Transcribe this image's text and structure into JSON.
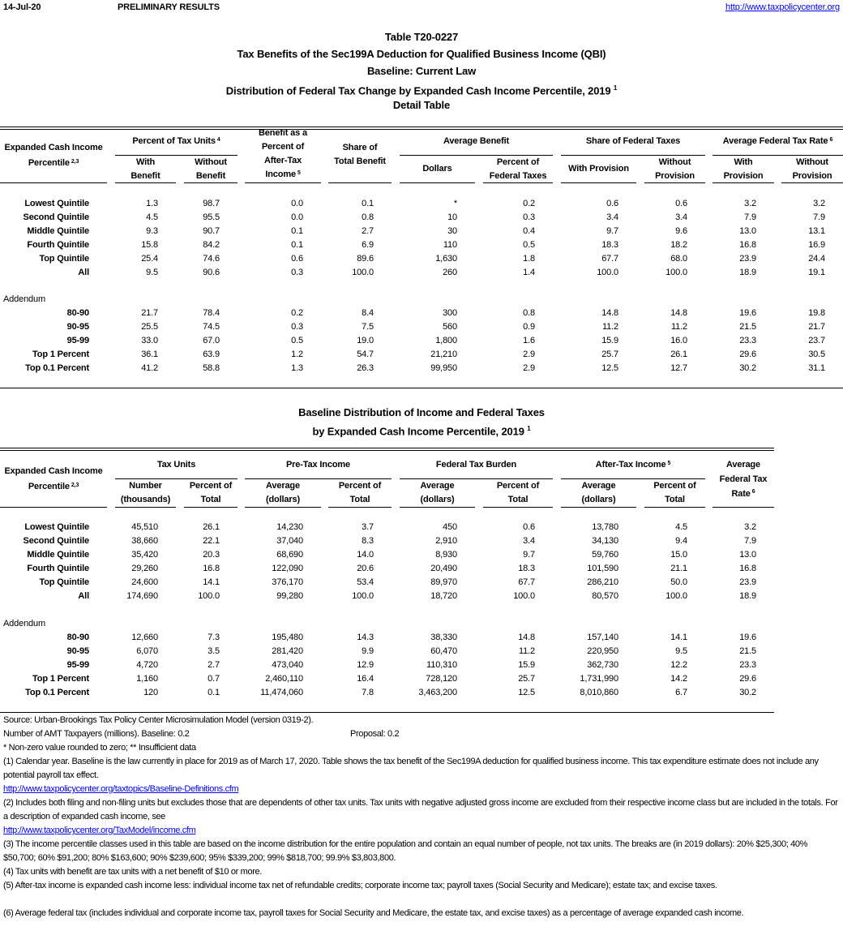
{
  "header": {
    "date": "14-Jul-20",
    "status": "PRELIMINARY RESULTS",
    "url": "http://www.taxpolicycenter.org"
  },
  "titles": [
    "Table T20-0227",
    "Tax Benefits of the Sec199A Deduction for Qualified Business Income (QBI)",
    "Baseline: Current Law",
    "Distribution of Federal Tax Change by Expanded Cash Income Percentile, 2019",
    "Detail Table"
  ],
  "title_sup": "1",
  "table1": {
    "label_header": "Expanded Cash Income\nPercentile",
    "label_sup": "2,3",
    "groups": {
      "pct_units": "Percent of Tax Units",
      "pct_units_sup": "4",
      "benefit_pct": "Benefit as a\nPercent of\nAfter-Tax\nIncome",
      "benefit_pct_sup": "5",
      "share_total": "Share of\nTotal Benefit",
      "avg_benefit": "Average Benefit",
      "share_fed": "Share of Federal Taxes",
      "aftr": "Average Federal Tax Rate",
      "aftr_sup": "6"
    },
    "sub": {
      "with_benefit": "With\nBenefit",
      "without_benefit": "Without\nBenefit",
      "dollars": "Dollars",
      "pct_fed": "Percent of\nFederal Taxes",
      "with_provision": "With Provision",
      "without_provision": "Without\nProvision",
      "aftr_with": "With\nProvision",
      "aftr_without": "Without\nProvision"
    },
    "rows": [
      {
        "label": "Lowest Quintile",
        "values": [
          "1.3",
          "98.7",
          "0.0",
          "0.1",
          "*",
          "0.2",
          "0.6",
          "0.6",
          "3.2",
          "3.2"
        ]
      },
      {
        "label": "Second Quintile",
        "values": [
          "4.5",
          "95.5",
          "0.0",
          "0.8",
          "10",
          "0.3",
          "3.4",
          "3.4",
          "7.9",
          "7.9"
        ]
      },
      {
        "label": "Middle Quintile",
        "values": [
          "9.3",
          "90.7",
          "0.1",
          "2.7",
          "30",
          "0.4",
          "9.7",
          "9.6",
          "13.0",
          "13.1"
        ]
      },
      {
        "label": "Fourth Quintile",
        "values": [
          "15.8",
          "84.2",
          "0.1",
          "6.9",
          "110",
          "0.5",
          "18.3",
          "18.2",
          "16.8",
          "16.9"
        ]
      },
      {
        "label": "Top Quintile",
        "values": [
          "25.4",
          "74.6",
          "0.6",
          "89.6",
          "1,630",
          "1.8",
          "67.7",
          "68.0",
          "23.9",
          "24.4"
        ]
      },
      {
        "label": "All",
        "values": [
          "9.5",
          "90.6",
          "0.3",
          "100.0",
          "260",
          "1.4",
          "100.0",
          "100.0",
          "18.9",
          "19.1"
        ]
      }
    ],
    "addendum_label": "Addendum",
    "addendum_rows": [
      {
        "label": "80-90",
        "values": [
          "21.7",
          "78.4",
          "0.2",
          "8.4",
          "300",
          "0.8",
          "14.8",
          "14.8",
          "19.6",
          "19.8"
        ]
      },
      {
        "label": "90-95",
        "values": [
          "25.5",
          "74.5",
          "0.3",
          "7.5",
          "560",
          "0.9",
          "11.2",
          "11.2",
          "21.5",
          "21.7"
        ]
      },
      {
        "label": "95-99",
        "values": [
          "33.0",
          "67.0",
          "0.5",
          "19.0",
          "1,800",
          "1.6",
          "15.9",
          "16.0",
          "23.3",
          "23.7"
        ]
      },
      {
        "label": "Top 1 Percent",
        "values": [
          "36.1",
          "63.9",
          "1.2",
          "54.7",
          "21,210",
          "2.9",
          "25.7",
          "26.1",
          "29.6",
          "30.5"
        ]
      },
      {
        "label": "Top 0.1 Percent",
        "values": [
          "41.2",
          "58.8",
          "1.3",
          "26.3",
          "99,950",
          "2.9",
          "12.5",
          "12.7",
          "30.2",
          "31.1"
        ]
      }
    ]
  },
  "table2_titles": [
    "Baseline Distribution of Income and Federal Taxes",
    "by Expanded Cash Income Percentile, 2019"
  ],
  "table2_title_sup": "1",
  "table2": {
    "label_header": "Expanded Cash Income\nPercentile",
    "label_sup": "2,3",
    "groups": {
      "tax_units": "Tax Units",
      "pretax": "Pre-Tax Income",
      "fed_burden": "Federal Tax Burden",
      "aftertax": "After-Tax Income",
      "aftertax_sup": "5",
      "aftr": "Average\nFederal Tax\nRate",
      "aftr_sup": "6"
    },
    "sub": {
      "number": "Number\n(thousands)",
      "pct_total_units": "Percent of\nTotal",
      "pretax_avg": "Average\n(dollars)",
      "pretax_pct": "Percent of\nTotal",
      "fed_avg": "Average\n(dollars)",
      "fed_pct": "Percent of\nTotal",
      "at_avg": "Average\n(dollars)",
      "at_pct": "Percent of\nTotal"
    },
    "rows": [
      {
        "label": "Lowest Quintile",
        "values": [
          "45,510",
          "26.1",
          "14,230",
          "3.7",
          "450",
          "0.6",
          "13,780",
          "4.5",
          "3.2"
        ]
      },
      {
        "label": "Second Quintile",
        "values": [
          "38,660",
          "22.1",
          "37,040",
          "8.3",
          "2,910",
          "3.4",
          "34,130",
          "9.4",
          "7.9"
        ]
      },
      {
        "label": "Middle Quintile",
        "values": [
          "35,420",
          "20.3",
          "68,690",
          "14.0",
          "8,930",
          "9.7",
          "59,760",
          "15.0",
          "13.0"
        ]
      },
      {
        "label": "Fourth Quintile",
        "values": [
          "29,260",
          "16.8",
          "122,090",
          "20.6",
          "20,490",
          "18.3",
          "101,590",
          "21.1",
          "16.8"
        ]
      },
      {
        "label": "Top Quintile",
        "values": [
          "24,600",
          "14.1",
          "376,170",
          "53.4",
          "89,970",
          "67.7",
          "286,210",
          "50.0",
          "23.9"
        ]
      },
      {
        "label": "All",
        "values": [
          "174,690",
          "100.0",
          "99,280",
          "100.0",
          "18,720",
          "100.0",
          "80,570",
          "100.0",
          "18.9"
        ]
      }
    ],
    "addendum_label": "Addendum",
    "addendum_rows": [
      {
        "label": "80-90",
        "values": [
          "12,660",
          "7.3",
          "195,480",
          "14.3",
          "38,330",
          "14.8",
          "157,140",
          "14.1",
          "19.6"
        ]
      },
      {
        "label": "90-95",
        "values": [
          "6,070",
          "3.5",
          "281,420",
          "9.9",
          "60,470",
          "11.2",
          "220,950",
          "9.5",
          "21.5"
        ]
      },
      {
        "label": "95-99",
        "values": [
          "4,720",
          "2.7",
          "473,040",
          "12.9",
          "110,310",
          "15.9",
          "362,730",
          "12.2",
          "23.3"
        ]
      },
      {
        "label": "Top 1 Percent",
        "values": [
          "1,160",
          "0.7",
          "2,460,110",
          "16.4",
          "728,120",
          "25.7",
          "1,731,990",
          "14.2",
          "29.6"
        ]
      },
      {
        "label": "Top 0.1 Percent",
        "values": [
          "120",
          "0.1",
          "11,474,060",
          "7.8",
          "3,463,200",
          "12.5",
          "8,010,860",
          "6.7",
          "30.2"
        ]
      }
    ]
  },
  "footnotes": {
    "source": "Source: Urban-Brookings Tax Policy Center Microsimulation Model (version 0319-2).",
    "amt": "Number of AMT Taxpayers (millions).  Baseline: 0.2",
    "amt_proposal": "Proposal: 0.2",
    "legend": "* Non-zero value rounded to zero; ** Insufficient data",
    "n1": "(1) Calendar year. Baseline is the law currently in place for 2019 as of March 17, 2020. Table shows the tax benefit of the Sec199A deduction for qualified business income. This tax expenditure estimate does not include any potential payroll tax effect.",
    "n1_link": "http://www.taxpolicycenter.org/taxtopics/Baseline-Definitions.cfm",
    "n2": "(2) Includes both filing and non-filing units but excludes those that are dependents of other tax units. Tax units with negative adjusted gross income are excluded from their respective income class but are included in the totals. For a description of expanded cash income, see",
    "n2_link": "http://www.taxpolicycenter.org/TaxModel/income.cfm",
    "n3": "(3) The income percentile classes used in this table are based on the income distribution for the entire population and contain an equal number of people, not tax units. The breaks are (in 2019 dollars): 20% $25,300; 40% $50,700; 60% $91,200; 80% $163,600; 90% $239,600; 95% $339,200; 99% $818,700; 99.9% $3,803,800.",
    "n4": "(4) Tax units with benefit are tax units with a net benefit of $10 or more.",
    "n5": "(5) After-tax income is expanded cash income less: individual income tax net of refundable credits; corporate income tax; payroll taxes (Social Security and Medicare); estate tax; and excise taxes.",
    "n6": "(6) Average federal tax (includes individual and corporate income tax, payroll taxes for Social Security and Medicare, the estate tax, and excise taxes) as a percentage of average expanded cash income."
  }
}
